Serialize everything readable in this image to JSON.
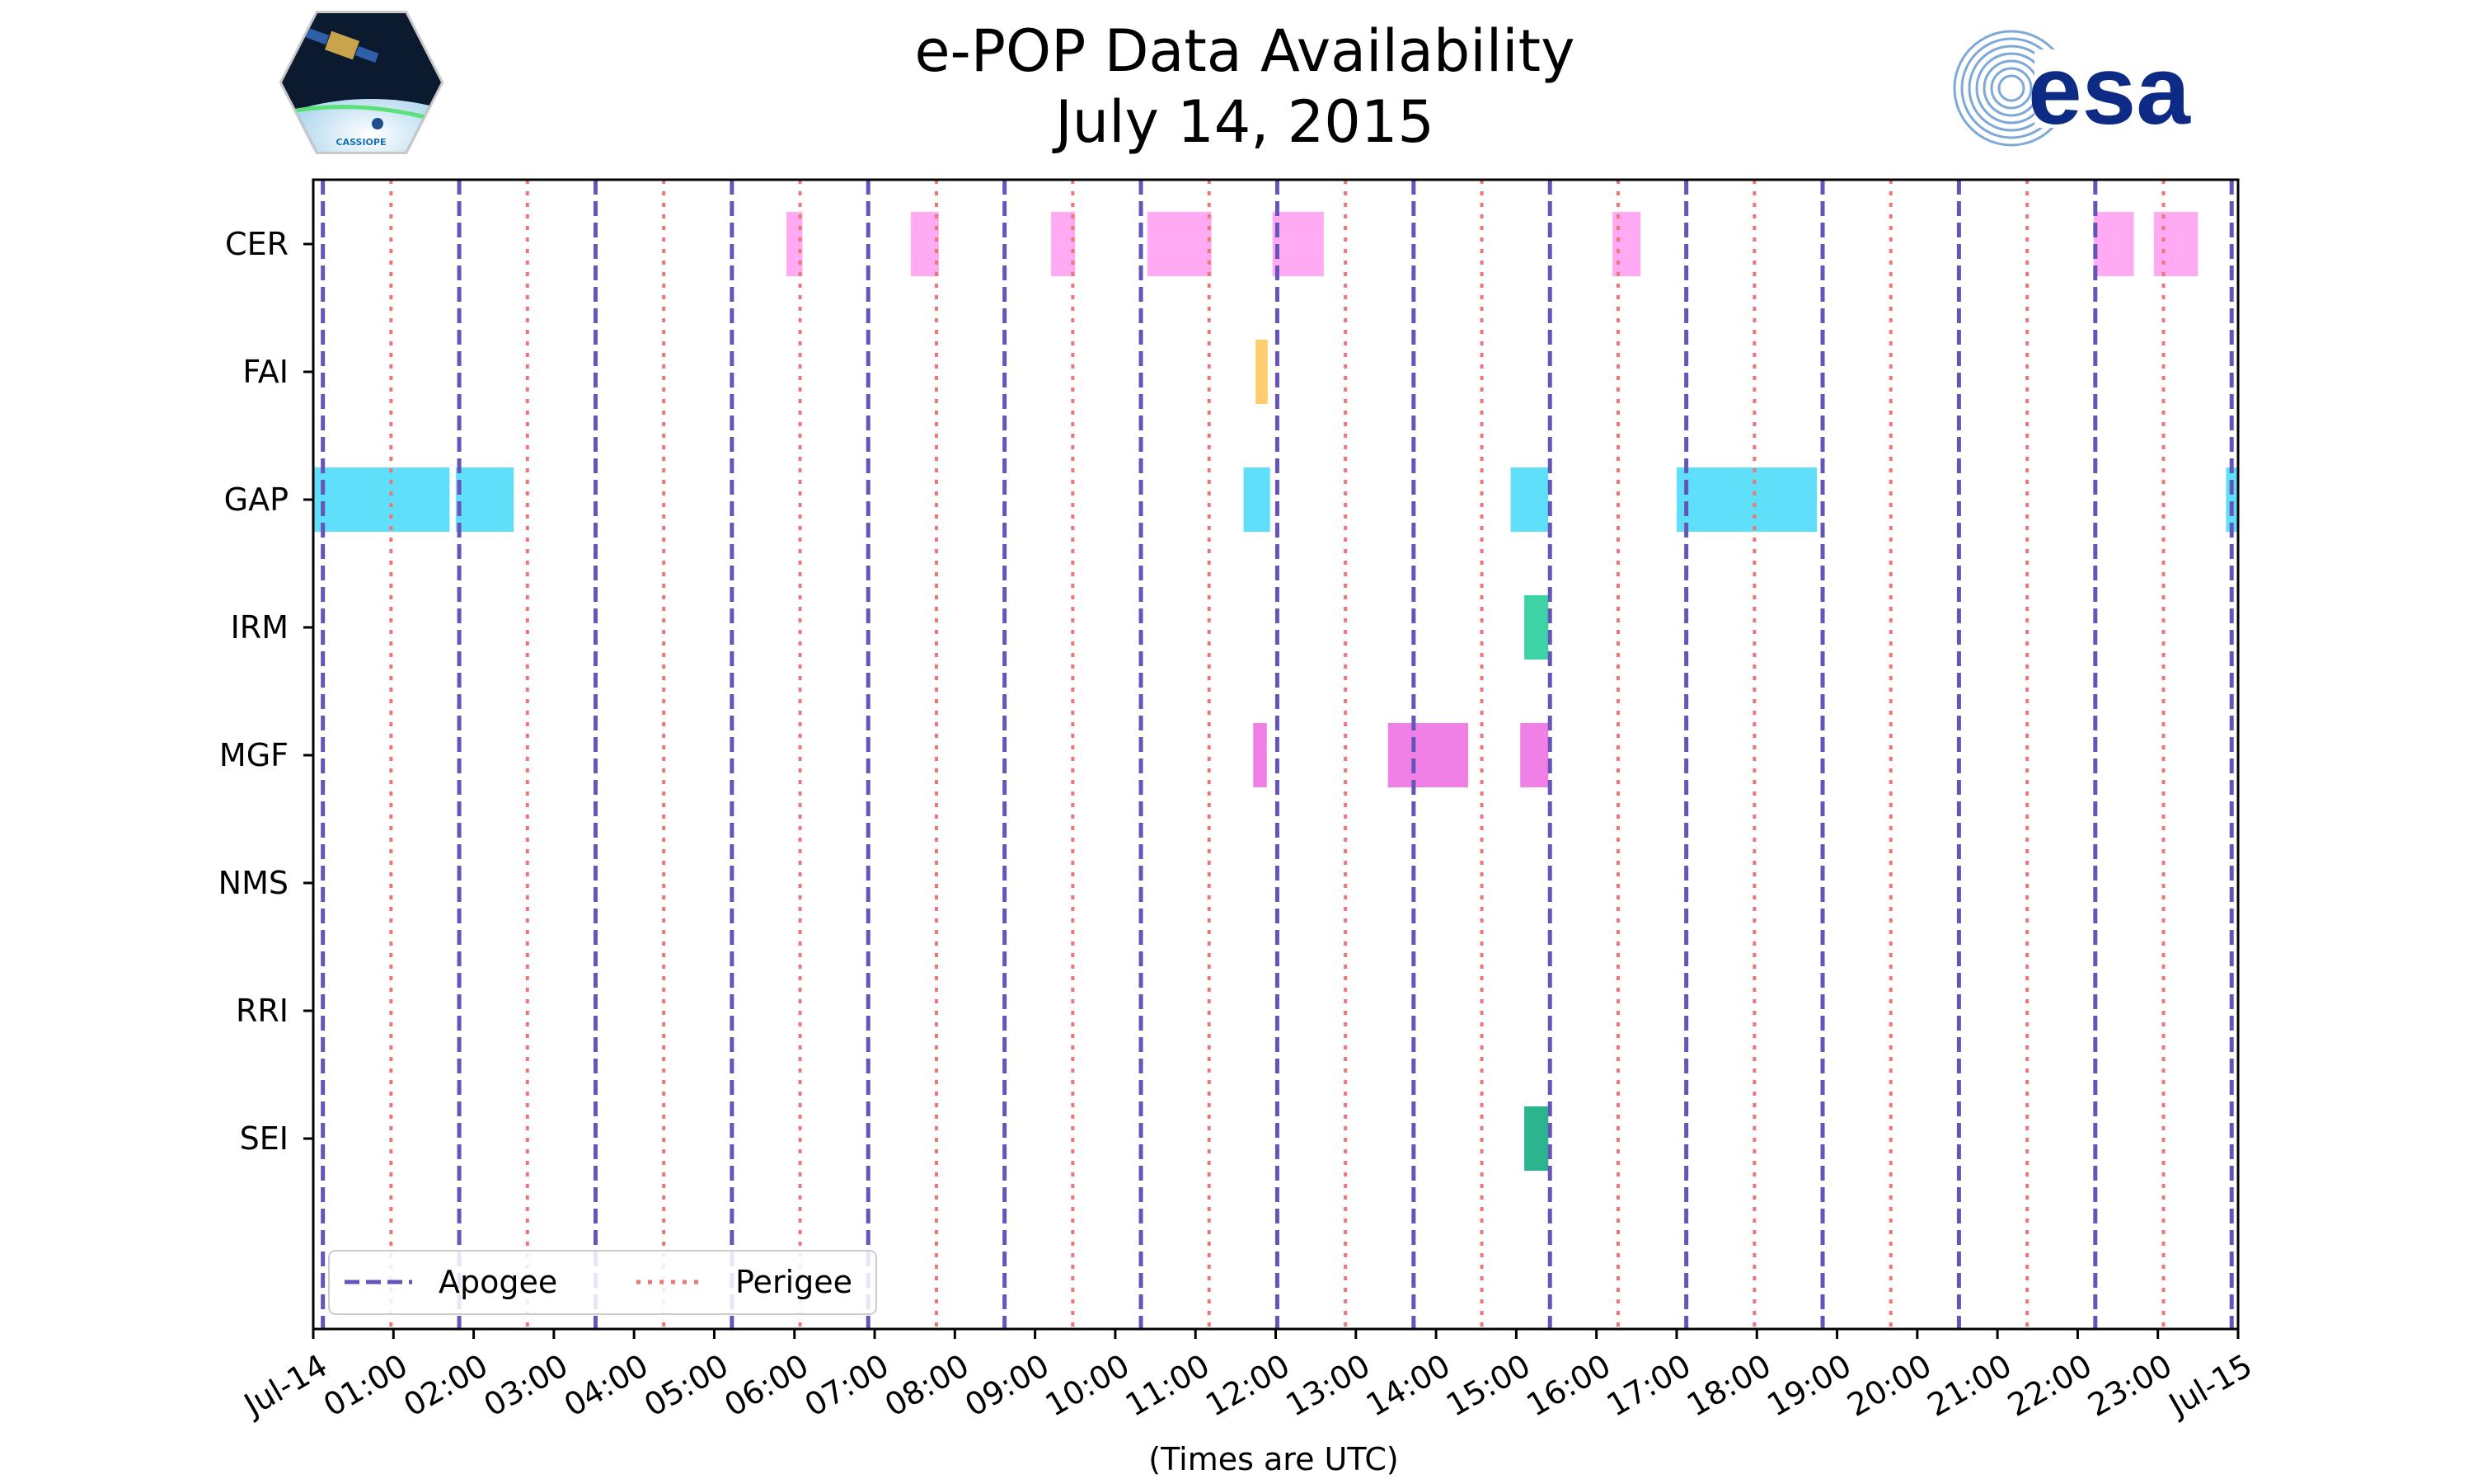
{
  "chart_data": {
    "type": "timeline",
    "title": "e-POP Data Availability",
    "subtitle": "July 14, 2015",
    "xlabel": "(Times are UTC)",
    "xlim_hours": [
      0,
      24
    ],
    "x_tick_labels": [
      "Jul-14",
      "01:00",
      "02:00",
      "03:00",
      "04:00",
      "05:00",
      "06:00",
      "07:00",
      "08:00",
      "09:00",
      "10:00",
      "11:00",
      "12:00",
      "13:00",
      "14:00",
      "15:00",
      "16:00",
      "17:00",
      "18:00",
      "19:00",
      "20:00",
      "21:00",
      "22:00",
      "23:00",
      "Jul-15"
    ],
    "instruments": [
      "CER",
      "FAI",
      "GAP",
      "IRM",
      "MGF",
      "NMS",
      "RRI",
      "SEI"
    ],
    "colors": {
      "CER": "#ffaaf2",
      "FAI": "#ffcc6e",
      "GAP": "#60dffa",
      "IRM": "#3dd3a6",
      "MGF": "#f080e6",
      "NMS": "#cccccc",
      "RRI": "#cccccc",
      "SEI": "#2bb48d",
      "apogee": "#6655b8",
      "perigee": "#f07575"
    },
    "series": [
      {
        "name": "CER",
        "intervals": [
          [
            5.9,
            6.1
          ],
          [
            7.45,
            7.8
          ],
          [
            9.2,
            9.5
          ],
          [
            10.4,
            11.2
          ],
          [
            11.96,
            12.6
          ],
          [
            16.2,
            16.55
          ],
          [
            22.2,
            22.7
          ],
          [
            22.95,
            23.5
          ]
        ]
      },
      {
        "name": "FAI",
        "intervals": [
          [
            11.75,
            11.9
          ]
        ]
      },
      {
        "name": "GAP",
        "intervals": [
          [
            0.0,
            1.7
          ],
          [
            1.78,
            2.5
          ],
          [
            11.6,
            11.93
          ],
          [
            14.93,
            15.4
          ],
          [
            17.0,
            18.75
          ],
          [
            23.85,
            24.0
          ]
        ]
      },
      {
        "name": "IRM",
        "intervals": [
          [
            15.1,
            15.4
          ]
        ]
      },
      {
        "name": "MGF",
        "intervals": [
          [
            11.72,
            11.89
          ],
          [
            13.4,
            14.4
          ],
          [
            15.05,
            15.4
          ]
        ]
      },
      {
        "name": "NMS",
        "intervals": []
      },
      {
        "name": "RRI",
        "intervals": []
      },
      {
        "name": "SEI",
        "intervals": [
          [
            15.1,
            15.4
          ]
        ]
      }
    ],
    "apogee_hours": [
      0.12,
      1.82,
      3.52,
      5.22,
      6.92,
      8.62,
      10.32,
      12.02,
      13.72,
      15.42,
      17.12,
      18.82,
      20.52,
      22.22,
      23.92
    ],
    "perigee_hours": [
      0.97,
      2.67,
      4.37,
      6.07,
      7.77,
      9.47,
      11.17,
      12.87,
      14.57,
      16.27,
      17.97,
      19.67,
      21.37,
      23.07
    ],
    "legend": {
      "location": "bottom-left",
      "entries": [
        "Apogee",
        "Perigee"
      ]
    }
  },
  "logos": {
    "left_caption": "CASSIOPE",
    "right_text": "esa"
  }
}
